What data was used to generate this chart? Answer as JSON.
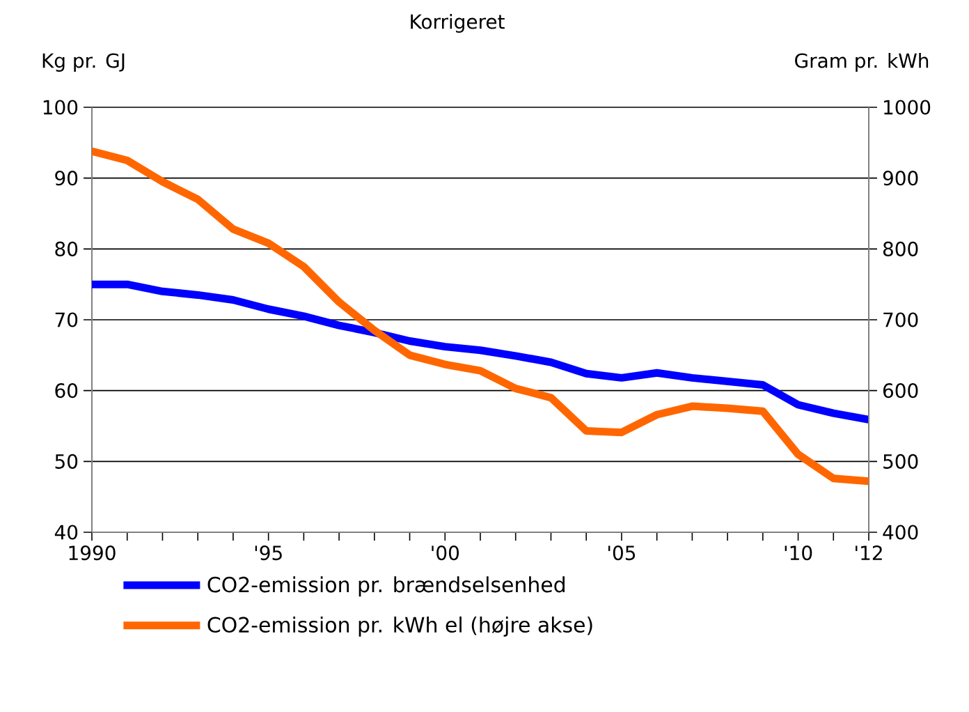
{
  "chart_data": {
    "type": "line",
    "title": "Korrigeret",
    "ylabel": "Kg pr. GJ",
    "y2label": "Gram pr. kWh",
    "x": [
      1990,
      1991,
      1992,
      1993,
      1994,
      1995,
      1996,
      1997,
      1998,
      1999,
      2000,
      2001,
      2002,
      2003,
      2004,
      2005,
      2006,
      2007,
      2008,
      2009,
      2010,
      2011,
      2012
    ],
    "series": [
      {
        "name": "CO2-emission pr. brændselsenhed",
        "color": "#0000ff",
        "values": [
          75,
          75,
          74,
          73.5,
          72.8,
          71.5,
          70.5,
          69.2,
          68.2,
          67,
          66.2,
          65.7,
          64.9,
          64,
          62.4,
          61.8,
          62.5,
          61.8,
          61.3,
          60.8,
          58,
          56.8,
          55.9
        ]
      },
      {
        "name": "CO2-emission pr. kWh el (højre akse)",
        "color": "#ff6600",
        "axis": "y2",
        "values": [
          938,
          925,
          895,
          870,
          828,
          808,
          775,
          725,
          685,
          650,
          637,
          628,
          603,
          590,
          543,
          541,
          566,
          578,
          575,
          571,
          510,
          476,
          472
        ]
      }
    ],
    "xlim": [
      1990,
      2012
    ],
    "xticks": [
      {
        "value": 1990,
        "label": "1990"
      },
      {
        "value": 1991,
        "label": null
      },
      {
        "value": 1992,
        "label": null
      },
      {
        "value": 1993,
        "label": null
      },
      {
        "value": 1994,
        "label": null
      },
      {
        "value": 1995,
        "label": "'95"
      },
      {
        "value": 1996,
        "label": null
      },
      {
        "value": 1997,
        "label": null
      },
      {
        "value": 1998,
        "label": null
      },
      {
        "value": 1999,
        "label": null
      },
      {
        "value": 2000,
        "label": "'00"
      },
      {
        "value": 2001,
        "label": null
      },
      {
        "value": 2002,
        "label": null
      },
      {
        "value": 2003,
        "label": null
      },
      {
        "value": 2004,
        "label": null
      },
      {
        "value": 2005,
        "label": "'05"
      },
      {
        "value": 2006,
        "label": null
      },
      {
        "value": 2007,
        "label": null
      },
      {
        "value": 2008,
        "label": null
      },
      {
        "value": 2009,
        "label": null
      },
      {
        "value": 2010,
        "label": "'10"
      },
      {
        "value": 2011,
        "label": null
      },
      {
        "value": 2012,
        "label": "'12"
      }
    ],
    "ylim": [
      40,
      100
    ],
    "yticks": [
      40,
      50,
      60,
      70,
      80,
      90,
      100
    ],
    "y2lim": [
      400,
      1000
    ],
    "y2ticks": [
      400,
      500,
      600,
      700,
      800,
      900,
      1000
    ],
    "grid": "y",
    "legend": "bottom",
    "marker": "none",
    "line_style": "solid"
  }
}
